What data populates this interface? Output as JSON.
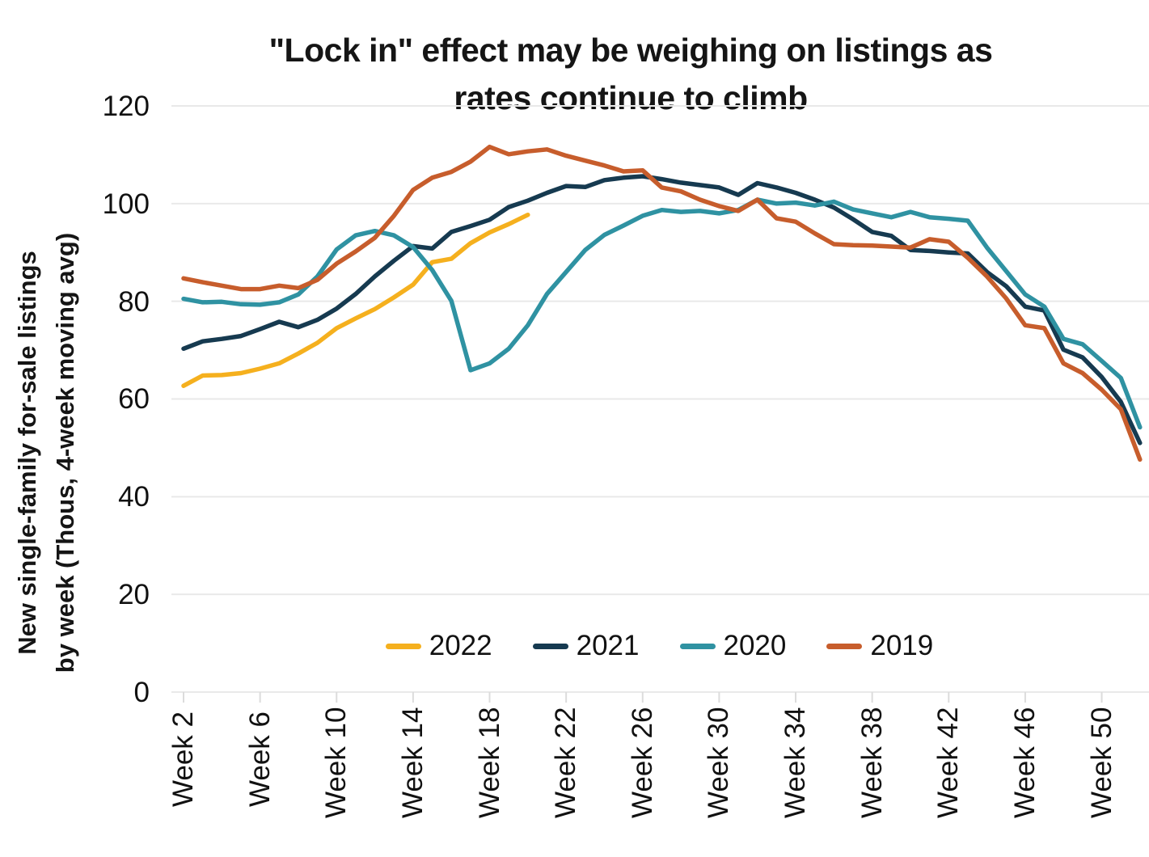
{
  "chart_data": {
    "type": "line",
    "title": "\"Lock in\" effect may be weighing on listings as rates continue to climb",
    "title_lines": [
      "\"Lock in\" effect may be weighing on listings as",
      "rates continue to climb"
    ],
    "ylabel": "New single-family for-sale listings by week (Thous, 4-week moving avg)",
    "ylabel_lines": [
      "New single-family for-sale listings",
      "by week (Thous, 4-week moving avg)"
    ],
    "ylim": [
      0,
      120
    ],
    "y_ticks": [
      0,
      20,
      40,
      60,
      80,
      100,
      120
    ],
    "x_tick_weeks": [
      2,
      6,
      10,
      14,
      18,
      22,
      26,
      30,
      34,
      38,
      42,
      46,
      50
    ],
    "x_tick_labels": [
      "Week 2",
      "Week 6",
      "Week 10",
      "Week 14",
      "Week 18",
      "Week 22",
      "Week 26",
      "Week 30",
      "Week 34",
      "Week 38",
      "Week 42",
      "Week 46",
      "Week 50"
    ],
    "grid": "horizontal-only",
    "legend_position": "bottom-center",
    "series": [
      {
        "name": "2022",
        "color": "#F5B01E",
        "start_week": 2,
        "values": [
          62.7,
          64.8,
          64.9,
          65.3,
          66.2,
          67.3,
          69.3,
          71.5,
          74.5,
          76.5,
          78.4,
          80.8,
          83.4,
          88.0,
          88.7,
          91.9,
          94.1,
          95.8,
          97.7
        ]
      },
      {
        "name": "2021",
        "color": "#163A50",
        "start_week": 2,
        "values": [
          70.3,
          71.8,
          72.3,
          72.9,
          74.3,
          75.8,
          74.7,
          76.2,
          78.5,
          81.5,
          85.1,
          88.3,
          91.3,
          90.8,
          94.2,
          95.4,
          96.7,
          99.3,
          100.6,
          102.2,
          103.6,
          103.4,
          104.8,
          105.3,
          105.6,
          105.0,
          104.3,
          103.8,
          103.3,
          101.8,
          104.2,
          103.3,
          102.2,
          100.8,
          99.2,
          96.8,
          94.2,
          93.4,
          90.5,
          90.3,
          90.0,
          89.8,
          86.0,
          83.1,
          78.9,
          78.1,
          70.1,
          68.5,
          64.5,
          59.4,
          51.0
        ]
      },
      {
        "name": "2020",
        "color": "#2F92A2",
        "start_week": 2,
        "values": [
          80.5,
          79.8,
          79.9,
          79.4,
          79.3,
          79.8,
          81.4,
          85.1,
          90.6,
          93.5,
          94.4,
          93.5,
          91.1,
          86.4,
          80.1,
          65.9,
          67.3,
          70.3,
          75.1,
          81.5,
          86.0,
          90.5,
          93.6,
          95.5,
          97.5,
          98.7,
          98.3,
          98.5,
          98.0,
          98.7,
          100.8,
          100.0,
          100.2,
          99.6,
          100.4,
          98.8,
          98.0,
          97.2,
          98.3,
          97.2,
          96.9,
          96.5,
          91.0,
          86.2,
          81.4,
          78.9,
          72.3,
          71.2,
          67.8,
          64.3,
          54.2
        ]
      },
      {
        "name": "2019",
        "color": "#C75D2C",
        "start_week": 2,
        "values": [
          84.7,
          83.9,
          83.2,
          82.5,
          82.5,
          83.2,
          82.7,
          84.4,
          87.7,
          90.2,
          93.0,
          97.5,
          102.8,
          105.3,
          106.5,
          108.6,
          111.6,
          110.1,
          110.7,
          111.1,
          109.8,
          108.8,
          107.8,
          106.6,
          106.8,
          103.3,
          102.5,
          100.8,
          99.5,
          98.5,
          100.8,
          97.0,
          96.3,
          93.9,
          91.7,
          91.5,
          91.4,
          91.2,
          91.0,
          92.7,
          92.2,
          88.9,
          85.1,
          80.6,
          75.1,
          74.5,
          67.3,
          65.3,
          61.9,
          57.9,
          47.6
        ]
      }
    ]
  }
}
